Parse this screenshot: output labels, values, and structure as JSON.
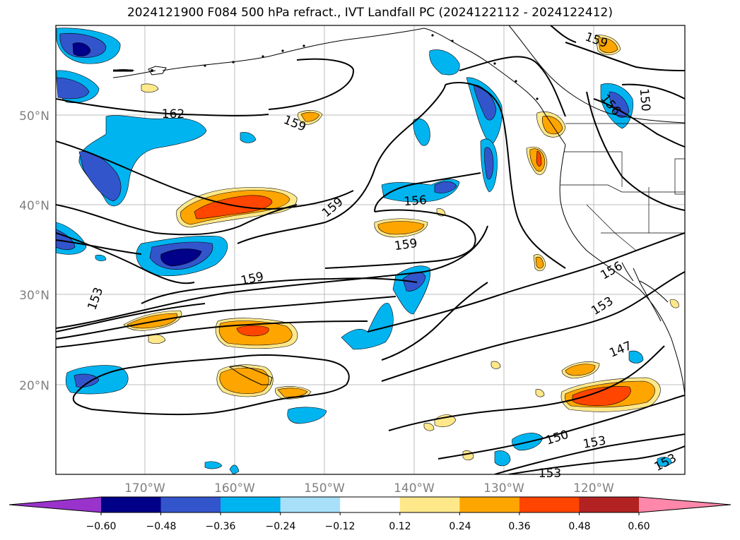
{
  "title": "2024121900 F084 500 hPa refract., IVT Landfall PC (2024122112 - 2024122412)",
  "map": {
    "lat_labels": [
      "50°N",
      "40°N",
      "30°N",
      "20°N"
    ],
    "lon_labels": [
      "170°W",
      "160°W",
      "150°W",
      "140°W",
      "130°W",
      "120°W"
    ],
    "contour_labels": [
      "162",
      "159",
      "159",
      "159",
      "159",
      "159",
      "156",
      "156",
      "156",
      "153",
      "153",
      "153",
      "153",
      "153",
      "150",
      "150",
      "147"
    ]
  },
  "colorbar": {
    "ticks": [
      "−0.60",
      "−0.48",
      "−0.36",
      "−0.24",
      "−0.12",
      "0.12",
      "0.24",
      "0.36",
      "0.48",
      "0.60"
    ],
    "colors": [
      "#9933cc",
      "#000088",
      "#3355cc",
      "#00b4f0",
      "#a8e0fa",
      "#ffffff",
      "#ffe88a",
      "#ffa500",
      "#ff4500",
      "#b22222",
      "#ff88aa"
    ]
  }
}
